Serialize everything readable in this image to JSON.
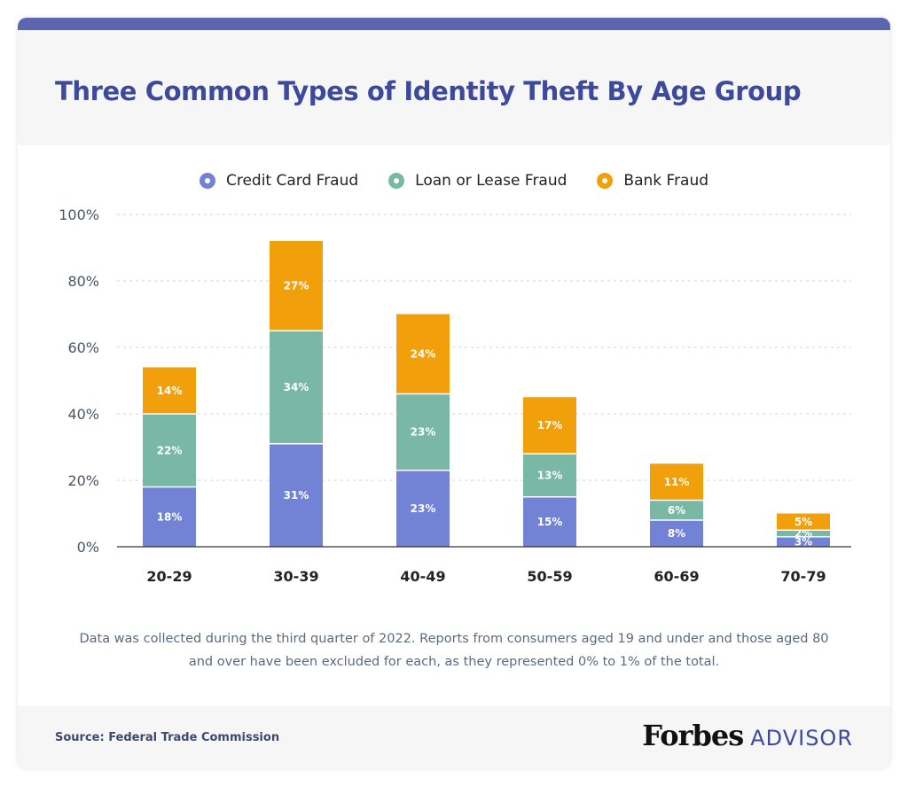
{
  "title": "Three Common Types of Identity Theft By Age Group",
  "note": "Data was collected during the third quarter of 2022. Reports from consumers aged 19 and under and those aged 80 and over have been excluded for each, as they represented 0% to 1% of the total.",
  "source": "Source: Federal Trade Commission",
  "brand": {
    "main": "Forbes",
    "sub": "ADVISOR"
  },
  "legend": [
    {
      "label": "Credit Card Fraud",
      "color": "#7283d6"
    },
    {
      "label": "Loan or Lease Fraud",
      "color": "#79b8a4"
    },
    {
      "label": "Bank Fraud",
      "color": "#f29f0c"
    }
  ],
  "chart_data": {
    "type": "bar",
    "stacked": true,
    "categories": [
      "20-29",
      "30-39",
      "40-49",
      "50-59",
      "60-69",
      "70-79"
    ],
    "series": [
      {
        "name": "Credit Card Fraud",
        "color": "#7283d6",
        "values": [
          18,
          31,
          23,
          15,
          8,
          3
        ]
      },
      {
        "name": "Loan or Lease Fraud",
        "color": "#79b8a4",
        "values": [
          22,
          34,
          23,
          13,
          6,
          2
        ]
      },
      {
        "name": "Bank Fraud",
        "color": "#f29f0c",
        "values": [
          14,
          27,
          24,
          17,
          11,
          5
        ]
      }
    ],
    "ylim": [
      0,
      100
    ],
    "yticks": [
      0,
      20,
      40,
      60,
      80,
      100
    ],
    "ytick_labels": [
      "0%",
      "20%",
      "40%",
      "60%",
      "80%",
      "100%"
    ],
    "grid": true,
    "legend_position": "top-center"
  }
}
